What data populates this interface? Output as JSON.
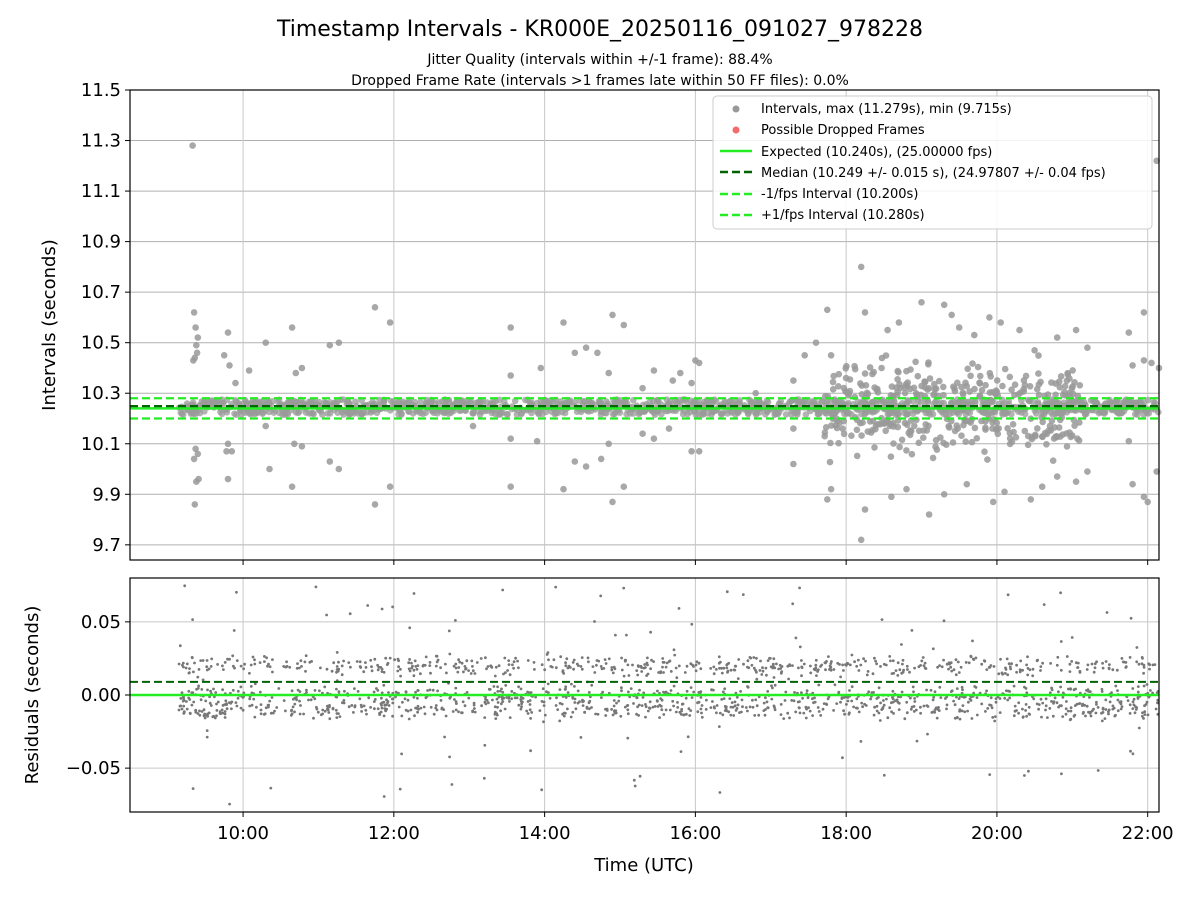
{
  "figure": {
    "title": "Timestamp Intervals - KR000E_20250116_091027_978228",
    "subtitle_1": "Jitter Quality (intervals within +/-1 frame): 88.4%",
    "subtitle_2": "Dropped Frame Rate (intervals >1 frames late within 50 FF files): 0.0%"
  },
  "colors": {
    "interval_points": "#999999",
    "dropped_points": "#f26c6c",
    "expected_line": "#22ee22",
    "median_line": "#006400",
    "bound_lines": "#22ee22",
    "residual_points": "#777777",
    "residual_expected": "#22ee22",
    "residual_median": "#006400"
  },
  "chart_data": [
    {
      "type": "scatter",
      "name": "intervals",
      "ylabel": "Intervals (seconds)",
      "xlabel": "",
      "xlim_hours": [
        8.5,
        22.15
      ],
      "ylim": [
        9.64,
        11.5
      ],
      "yticks": [
        9.7,
        9.9,
        10.1,
        10.3,
        10.5,
        10.7,
        10.9,
        11.1,
        11.3,
        11.5
      ],
      "ytick_labels": [
        "9.7",
        "9.9",
        "10.1",
        "10.3",
        "10.5",
        "10.7",
        "10.9",
        "11.1",
        "11.3",
        "11.5"
      ],
      "xticks_hours": [
        10,
        12,
        14,
        16,
        18,
        20,
        22
      ],
      "grid": true,
      "legend_position": "top-right",
      "legend": [
        "Intervals, max (11.279s), min (9.715s)",
        "Possible Dropped Frames",
        "Expected (10.240s), (25.00000 fps)",
        "Median (10.249 +/- 0.015 s), (24.97807 +/- 0.04 fps)",
        "-1/fps Interval (10.200s)",
        "+1/fps Interval (10.280s)"
      ],
      "series": [
        {
          "name": "Intervals, max (11.279s), min (9.715s)",
          "max": 11.279,
          "min": 9.715,
          "band_center": 10.245,
          "band_halfwidth": 0.03,
          "time_range_hours": [
            9.15,
            22.15
          ],
          "outliers": [
            {
              "t": 9.33,
              "y": 11.28
            },
            {
              "t": 9.35,
              "y": 10.62
            },
            {
              "t": 9.37,
              "y": 10.56
            },
            {
              "t": 9.4,
              "y": 10.52
            },
            {
              "t": 9.38,
              "y": 10.49
            },
            {
              "t": 9.34,
              "y": 10.43
            },
            {
              "t": 9.36,
              "y": 10.44
            },
            {
              "t": 9.39,
              "y": 10.46
            },
            {
              "t": 9.37,
              "y": 10.08
            },
            {
              "t": 9.35,
              "y": 10.04
            },
            {
              "t": 9.4,
              "y": 10.06
            },
            {
              "t": 9.41,
              "y": 9.96
            },
            {
              "t": 9.38,
              "y": 9.95
            },
            {
              "t": 9.36,
              "y": 9.86
            },
            {
              "t": 9.75,
              "y": 10.45
            },
            {
              "t": 9.8,
              "y": 10.54
            },
            {
              "t": 9.82,
              "y": 10.41
            },
            {
              "t": 9.9,
              "y": 10.34
            },
            {
              "t": 9.78,
              "y": 10.07
            },
            {
              "t": 9.85,
              "y": 10.07
            },
            {
              "t": 9.8,
              "y": 10.1
            },
            {
              "t": 9.8,
              "y": 9.96
            },
            {
              "t": 10.08,
              "y": 10.39
            },
            {
              "t": 10.3,
              "y": 10.5
            },
            {
              "t": 10.3,
              "y": 10.17
            },
            {
              "t": 10.35,
              "y": 10.0
            },
            {
              "t": 10.65,
              "y": 10.56
            },
            {
              "t": 10.7,
              "y": 10.38
            },
            {
              "t": 10.78,
              "y": 10.4
            },
            {
              "t": 10.68,
              "y": 10.1
            },
            {
              "t": 10.78,
              "y": 10.09
            },
            {
              "t": 10.65,
              "y": 9.93
            },
            {
              "t": 11.15,
              "y": 10.49
            },
            {
              "t": 11.27,
              "y": 10.5
            },
            {
              "t": 11.15,
              "y": 10.03
            },
            {
              "t": 11.27,
              "y": 10.0
            },
            {
              "t": 11.75,
              "y": 10.64
            },
            {
              "t": 11.95,
              "y": 10.58
            },
            {
              "t": 11.75,
              "y": 9.86
            },
            {
              "t": 11.95,
              "y": 9.93
            },
            {
              "t": 13.05,
              "y": 10.17
            },
            {
              "t": 13.55,
              "y": 10.56
            },
            {
              "t": 13.55,
              "y": 10.37
            },
            {
              "t": 13.55,
              "y": 10.12
            },
            {
              "t": 13.55,
              "y": 9.93
            },
            {
              "t": 13.95,
              "y": 10.4
            },
            {
              "t": 13.9,
              "y": 10.11
            },
            {
              "t": 14.25,
              "y": 10.58
            },
            {
              "t": 14.25,
              "y": 9.92
            },
            {
              "t": 14.4,
              "y": 10.46
            },
            {
              "t": 14.55,
              "y": 10.48
            },
            {
              "t": 14.7,
              "y": 10.46
            },
            {
              "t": 14.4,
              "y": 10.03
            },
            {
              "t": 14.55,
              "y": 10.01
            },
            {
              "t": 14.75,
              "y": 10.04
            },
            {
              "t": 14.85,
              "y": 10.38
            },
            {
              "t": 14.9,
              "y": 10.61
            },
            {
              "t": 15.05,
              "y": 10.57
            },
            {
              "t": 14.85,
              "y": 10.1
            },
            {
              "t": 14.9,
              "y": 9.87
            },
            {
              "t": 15.05,
              "y": 9.93
            },
            {
              "t": 15.3,
              "y": 10.32
            },
            {
              "t": 15.45,
              "y": 10.39
            },
            {
              "t": 15.3,
              "y": 10.14
            },
            {
              "t": 15.45,
              "y": 10.12
            },
            {
              "t": 15.7,
              "y": 10.35
            },
            {
              "t": 15.8,
              "y": 10.38
            },
            {
              "t": 15.65,
              "y": 10.16
            },
            {
              "t": 15.95,
              "y": 10.34
            },
            {
              "t": 15.95,
              "y": 10.07
            },
            {
              "t": 16.0,
              "y": 10.43
            },
            {
              "t": 16.05,
              "y": 10.42
            },
            {
              "t": 16.05,
              "y": 10.07
            },
            {
              "t": 16.8,
              "y": 10.3
            },
            {
              "t": 17.3,
              "y": 10.35
            },
            {
              "t": 17.3,
              "y": 10.16
            },
            {
              "t": 17.3,
              "y": 10.02
            },
            {
              "t": 17.45,
              "y": 10.45
            },
            {
              "t": 17.6,
              "y": 10.5
            },
            {
              "t": 17.75,
              "y": 10.63
            },
            {
              "t": 17.8,
              "y": 10.45
            },
            {
              "t": 17.8,
              "y": 9.92
            },
            {
              "t": 17.75,
              "y": 9.88
            },
            {
              "t": 18.2,
              "y": 10.8
            },
            {
              "t": 18.25,
              "y": 10.62
            },
            {
              "t": 18.25,
              "y": 9.84
            },
            {
              "t": 18.2,
              "y": 9.72
            },
            {
              "t": 18.55,
              "y": 10.55
            },
            {
              "t": 18.7,
              "y": 10.58
            },
            {
              "t": 18.6,
              "y": 9.89
            },
            {
              "t": 18.8,
              "y": 9.92
            },
            {
              "t": 19.0,
              "y": 10.66
            },
            {
              "t": 19.1,
              "y": 9.82
            },
            {
              "t": 19.3,
              "y": 10.65
            },
            {
              "t": 19.4,
              "y": 10.61
            },
            {
              "t": 19.3,
              "y": 9.9
            },
            {
              "t": 19.5,
              "y": 10.56
            },
            {
              "t": 19.7,
              "y": 10.53
            },
            {
              "t": 19.6,
              "y": 9.94
            },
            {
              "t": 19.9,
              "y": 10.6
            },
            {
              "t": 20.05,
              "y": 10.58
            },
            {
              "t": 19.95,
              "y": 9.87
            },
            {
              "t": 20.1,
              "y": 9.91
            },
            {
              "t": 20.3,
              "y": 10.55
            },
            {
              "t": 20.5,
              "y": 10.47
            },
            {
              "t": 20.45,
              "y": 9.88
            },
            {
              "t": 20.6,
              "y": 9.93
            },
            {
              "t": 20.8,
              "y": 10.52
            },
            {
              "t": 20.8,
              "y": 9.97
            },
            {
              "t": 21.05,
              "y": 10.55
            },
            {
              "t": 21.05,
              "y": 9.95
            },
            {
              "t": 21.2,
              "y": 10.48
            },
            {
              "t": 21.2,
              "y": 9.99
            },
            {
              "t": 21.75,
              "y": 10.54
            },
            {
              "t": 21.8,
              "y": 10.41
            },
            {
              "t": 21.75,
              "y": 10.11
            },
            {
              "t": 21.8,
              "y": 9.94
            },
            {
              "t": 21.95,
              "y": 10.62
            },
            {
              "t": 21.95,
              "y": 10.43
            },
            {
              "t": 22.05,
              "y": 10.42
            },
            {
              "t": 21.95,
              "y": 9.89
            },
            {
              "t": 22.0,
              "y": 9.87
            },
            {
              "t": 22.12,
              "y": 11.22
            },
            {
              "t": 22.15,
              "y": 10.4
            },
            {
              "t": 22.12,
              "y": 9.99
            }
          ]
        },
        {
          "name": "Possible Dropped Frames",
          "values": []
        },
        {
          "name": "Expected (10.240s), (25.00000 fps)",
          "y": 10.24,
          "x_range_hours": [
            8.5,
            22.15
          ]
        },
        {
          "name": "Median (10.249 +/- 0.015 s), (24.97807 +/- 0.04 fps)",
          "y": 10.249,
          "x_range_hours": [
            8.5,
            22.15
          ]
        },
        {
          "name": "-1/fps Interval (10.200s)",
          "y": 10.2,
          "x_range_hours": [
            8.5,
            22.15
          ]
        },
        {
          "name": "+1/fps Interval (10.280s)",
          "y": 10.28,
          "x_range_hours": [
            8.5,
            22.15
          ]
        }
      ]
    },
    {
      "type": "scatter",
      "name": "residuals",
      "ylabel": "Residuals (seconds)",
      "xlabel": "Time (UTC)",
      "xlim_hours": [
        8.5,
        22.15
      ],
      "ylim": [
        -0.08,
        0.08
      ],
      "yticks": [
        -0.05,
        0.0,
        0.05
      ],
      "ytick_labels": [
        "−0.05",
        "0.00",
        "0.05"
      ],
      "xticks_hours": [
        10,
        12,
        14,
        16,
        18,
        20,
        22
      ],
      "xtick_labels": [
        "10:00",
        "12:00",
        "14:00",
        "16:00",
        "18:00",
        "20:00",
        "22:00"
      ],
      "grid": true,
      "series": [
        {
          "name": "residuals",
          "time_range_hours": [
            9.15,
            22.15
          ],
          "bands": [
            0.02,
            0.0,
            -0.01
          ],
          "spread": 0.012,
          "approx_count": 1700
        },
        {
          "name": "expected",
          "y": 0.0
        },
        {
          "name": "median",
          "y": 0.009
        }
      ]
    }
  ]
}
